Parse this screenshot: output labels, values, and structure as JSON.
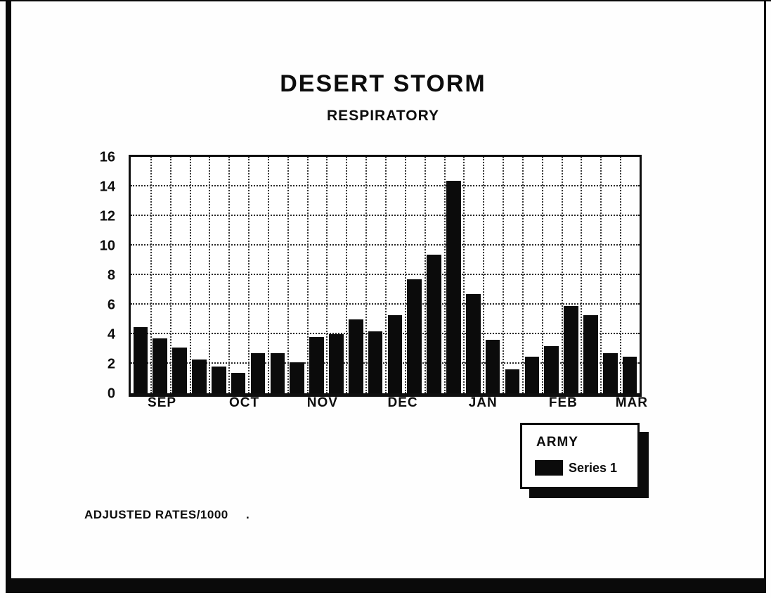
{
  "title": "DESERT STORM",
  "subtitle": "RESPIRATORY",
  "footnote": "ADJUSTED RATES/1000",
  "footnote_dot": ".",
  "legend": {
    "header": "ARMY",
    "series_label": "Series 1",
    "swatch_color": "#0b0b0b"
  },
  "colors": {
    "bar": "#0b0b0b",
    "frame": "#0a0a0a",
    "background": "#ffffff"
  },
  "chart_data": {
    "type": "bar",
    "title": "DESERT STORM",
    "subtitle": "RESPIRATORY",
    "unit_note": "ADJUSTED RATES/1000",
    "group": "ARMY",
    "n_bars": 26,
    "values": [
      4.5,
      3.7,
      3.1,
      2.3,
      1.8,
      1.4,
      2.7,
      2.7,
      2.1,
      3.8,
      4.0,
      5.0,
      4.2,
      5.3,
      7.7,
      9.4,
      14.4,
      6.7,
      3.6,
      1.6,
      2.5,
      3.2,
      5.9,
      5.3,
      2.7,
      2.5
    ],
    "series": [
      {
        "name": "Series 1",
        "color": "#0b0b0b"
      }
    ],
    "x_month_labels": [
      "SEP",
      "OCT",
      "NOV",
      "DEC",
      "JAN",
      "FEB",
      "MAR"
    ],
    "x_month_label_slots": [
      1.6,
      5.8,
      9.8,
      13.9,
      18.0,
      22.1,
      25.6
    ],
    "xlabel": "",
    "ylabel": "",
    "ylim": [
      0,
      16
    ],
    "yticks": [
      0,
      2,
      4,
      6,
      8,
      10,
      12,
      14,
      16
    ],
    "grid": "dotted, horizontal at every ytick and vertical at every bar slot",
    "legend_position": "bottom-right"
  }
}
